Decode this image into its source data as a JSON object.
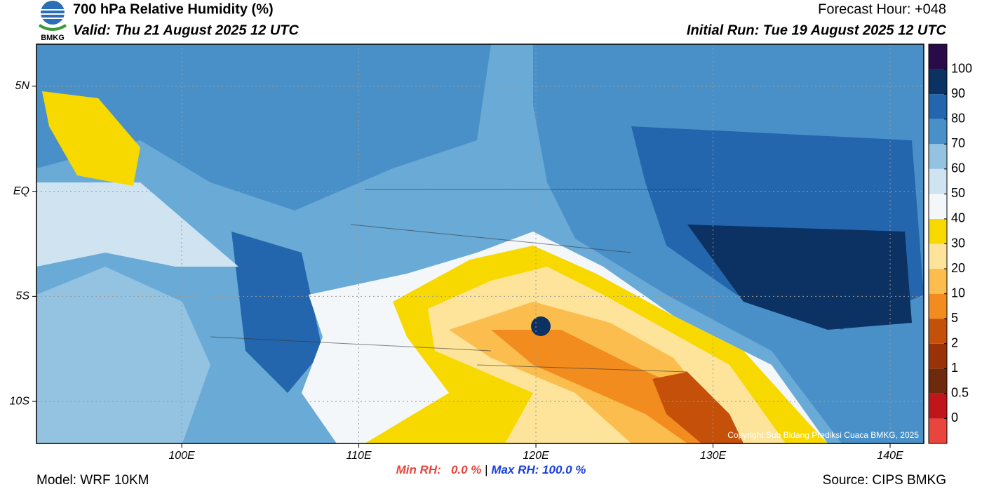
{
  "header": {
    "title": "700 hPa Relative Humidity (%)",
    "valid": "Valid: Thu 21 August 2025 12 UTC",
    "forecast_hour": "Forecast Hour: +048",
    "initial_run": "Initial Run: Tue 19 August 2025 12 UTC",
    "logo_text": "BMKG"
  },
  "map": {
    "xlim": [
      91.8,
      141.9
    ],
    "ylim": [
      -12,
      7
    ],
    "xticks": [
      {
        "value": 100,
        "label": "100E"
      },
      {
        "value": 110,
        "label": "110E"
      },
      {
        "value": 120,
        "label": "120E"
      },
      {
        "value": 130,
        "label": "130E"
      },
      {
        "value": 140,
        "label": "140E"
      }
    ],
    "yticks": [
      {
        "value": 5,
        "label": "5N"
      },
      {
        "value": 0,
        "label": "EQ"
      },
      {
        "value": -5,
        "label": "5S"
      },
      {
        "value": -10,
        "label": "10S"
      }
    ],
    "grid": true,
    "copyright": "Copyright Sub Bidang Prediksi Cuaca BMKG, 2025"
  },
  "colorbar": {
    "levels": [
      0,
      0.5,
      1,
      2,
      5,
      10,
      20,
      30,
      40,
      50,
      60,
      70,
      80,
      90,
      100
    ],
    "colors": [
      "#e8453c",
      "#c0151b",
      "#6e2a0c",
      "#9a3208",
      "#c4500a",
      "#f28c1e",
      "#fbbd4e",
      "#fde49a",
      "#f7d900",
      "#f4f7fa",
      "#cfe3f1",
      "#94c3e2",
      "#4a90c8",
      "#2366ad",
      "#0b3262",
      "#2a0b4a"
    ]
  },
  "footer": {
    "min_rh": "Min RH:   0.0 %",
    "separator": "|",
    "max_rh": "Max RH: 100.0 %",
    "model": "Model: WRF 10KM",
    "source": "Source: CIPS BMKG"
  }
}
